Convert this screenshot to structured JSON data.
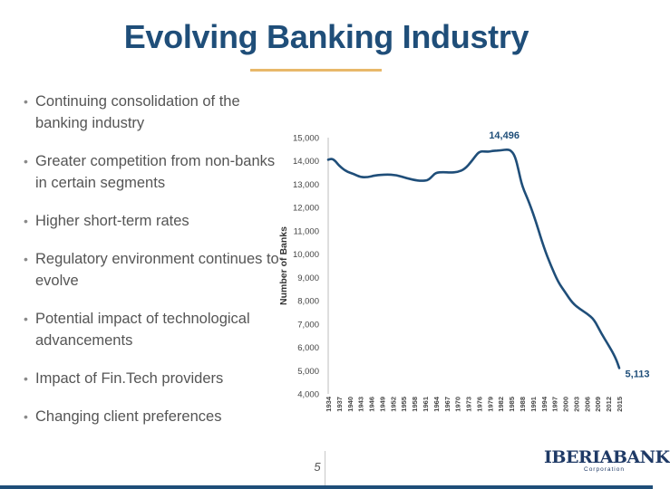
{
  "slide": {
    "title": "Evolving Banking Industry",
    "page_number": "5",
    "accent_color": "#e8b86a",
    "title_color": "#1f4e79"
  },
  "bullets": [
    "Continuing consolidation of the banking industry",
    "Greater competition from non-banks in certain segments",
    "Higher short-term rates",
    "Regulatory environment continues to evolve",
    "Potential impact of technological advancements",
    "Impact of Fin.Tech providers",
    "Changing client preferences"
  ],
  "logo": {
    "name": "IBERIABANK",
    "subtitle": "Corporation"
  },
  "chart_data": {
    "type": "line",
    "title": "",
    "xlabel": "",
    "ylabel": "Number of Banks",
    "ylim": [
      4000,
      15000
    ],
    "yticks": [
      4000,
      5000,
      6000,
      7000,
      8000,
      9000,
      10000,
      11000,
      12000,
      13000,
      14000,
      15000
    ],
    "ytick_labels": [
      "4,000",
      "5,000",
      "6,000",
      "7,000",
      "8,000",
      "9,000",
      "10,000",
      "11,000",
      "12,000",
      "13,000",
      "14,000",
      "15,000"
    ],
    "xticks": [
      "1934",
      "1937",
      "1940",
      "1943",
      "1946",
      "1949",
      "1952",
      "1955",
      "1958",
      "1961",
      "1964",
      "1967",
      "1970",
      "1973",
      "1976",
      "1979",
      "1982",
      "1985",
      "1988",
      "1991",
      "1994",
      "1997",
      "2000",
      "2003",
      "2006",
      "2009",
      "2012",
      "2015"
    ],
    "series": [
      {
        "name": "Number of Banks",
        "color": "#1f4e79",
        "x": [
          1934,
          1935,
          1936,
          1937,
          1939,
          1941,
          1943,
          1945,
          1947,
          1950,
          1953,
          1956,
          1959,
          1961,
          1962,
          1963,
          1964,
          1966,
          1968,
          1970,
          1972,
          1974,
          1976,
          1978,
          1979,
          1980,
          1982,
          1984,
          1985,
          1986,
          1987,
          1988,
          1990,
          1992,
          1994,
          1996,
          1998,
          2000,
          2002,
          2004,
          2006,
          2008,
          2010,
          2012,
          2014,
          2015
        ],
        "values": [
          14050,
          14100,
          14000,
          13800,
          13550,
          13450,
          13300,
          13300,
          13380,
          13420,
          13400,
          13250,
          13150,
          13150,
          13200,
          13350,
          13500,
          13520,
          13500,
          13520,
          13650,
          14000,
          14420,
          14400,
          14400,
          14440,
          14451,
          14496,
          14430,
          14200,
          13600,
          12900,
          12200,
          11300,
          10300,
          9500,
          8800,
          8350,
          7900,
          7650,
          7450,
          7200,
          6600,
          6100,
          5550,
          5113
        ]
      }
    ],
    "annotations": [
      {
        "label": "14,496",
        "x": 1984,
        "y": 14496,
        "position": "above"
      },
      {
        "label": "5,113",
        "x": 2015,
        "y": 5113,
        "position": "right"
      }
    ]
  }
}
